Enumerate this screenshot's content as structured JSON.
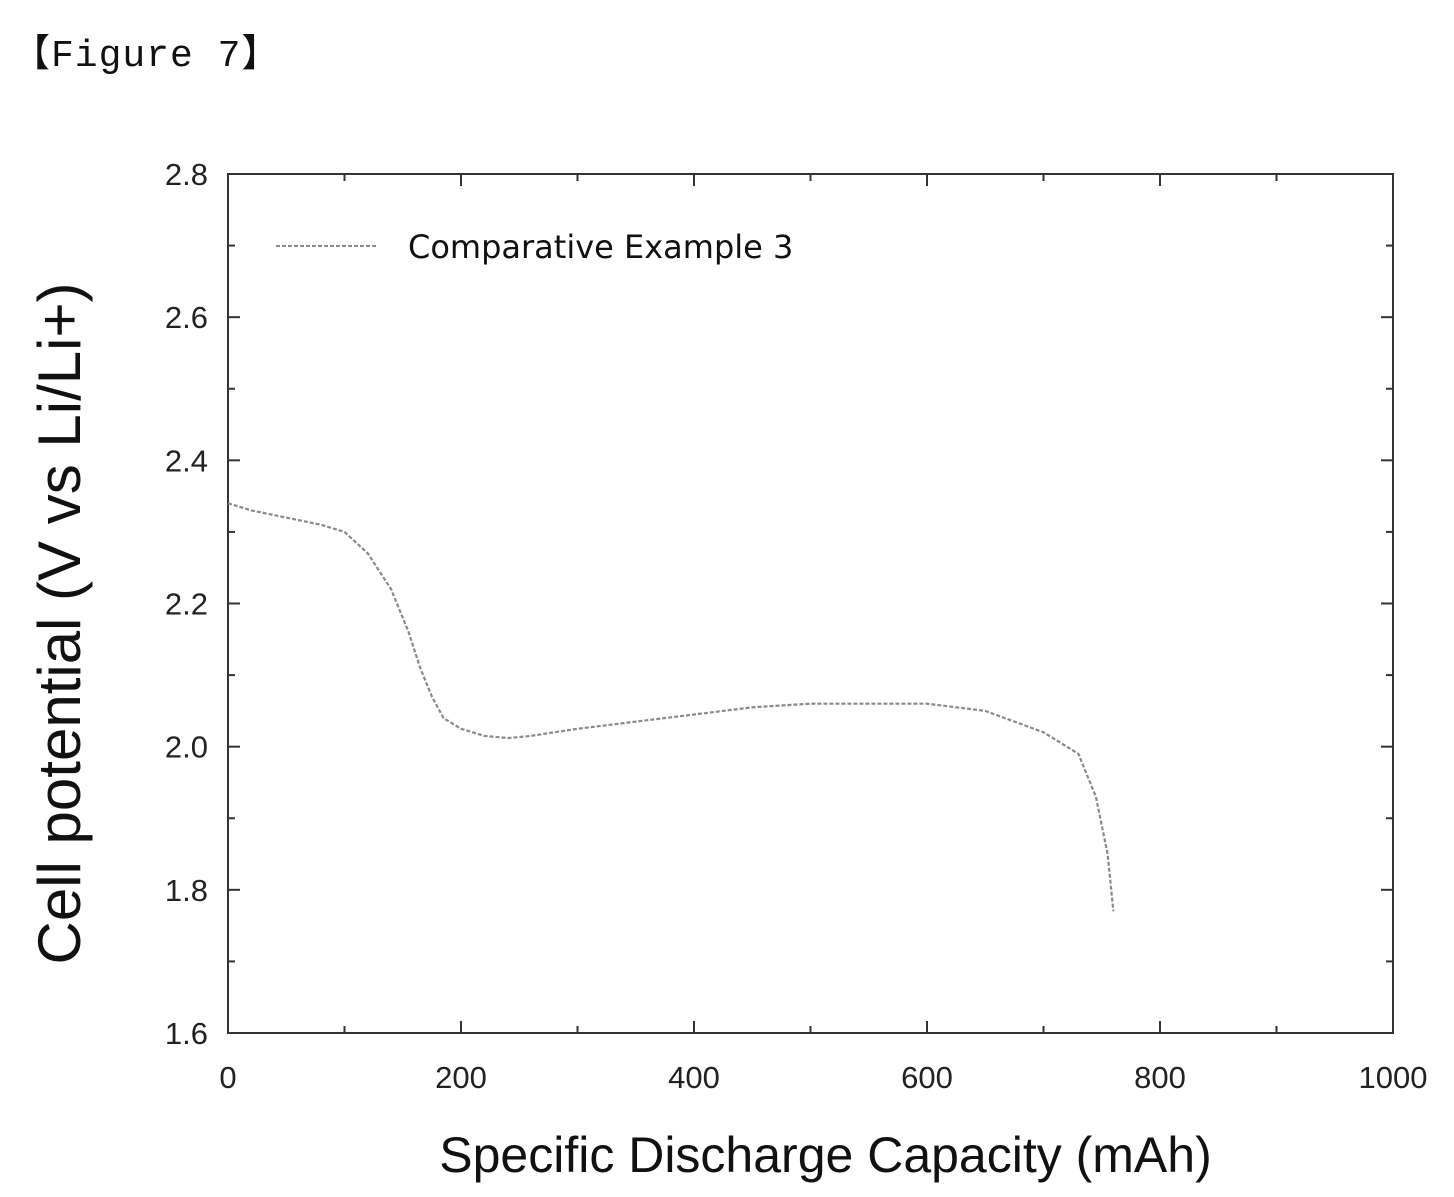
{
  "figure_label": "【Figure 7】",
  "chart_data": {
    "type": "line",
    "xlabel": "Specific Discharge Capacity (mAh)",
    "ylabel": "Cell potential (V vs Li/Li+)",
    "xlim": [
      0,
      1000
    ],
    "ylim": [
      1.6,
      2.8
    ],
    "xticks": [
      "0",
      "200",
      "400",
      "600",
      "800",
      "1000"
    ],
    "yticks": [
      "1.6",
      "1.8",
      "2.0",
      "2.2",
      "2.4",
      "2.6",
      "2.8"
    ],
    "legend_position": "top-left",
    "grid": false,
    "series": [
      {
        "name": "Comparative Example 3",
        "color": "#8a8a8a",
        "x": [
          0,
          20,
          50,
          80,
          100,
          120,
          140,
          155,
          165,
          175,
          185,
          200,
          220,
          240,
          260,
          280,
          300,
          350,
          400,
          450,
          500,
          550,
          600,
          650,
          700,
          730,
          745,
          755,
          760
        ],
        "y": [
          2.34,
          2.33,
          2.32,
          2.31,
          2.3,
          2.27,
          2.22,
          2.16,
          2.11,
          2.07,
          2.04,
          2.025,
          2.015,
          2.012,
          2.015,
          2.02,
          2.025,
          2.035,
          2.045,
          2.055,
          2.06,
          2.06,
          2.06,
          2.05,
          2.02,
          1.99,
          1.93,
          1.85,
          1.77
        ]
      }
    ]
  }
}
